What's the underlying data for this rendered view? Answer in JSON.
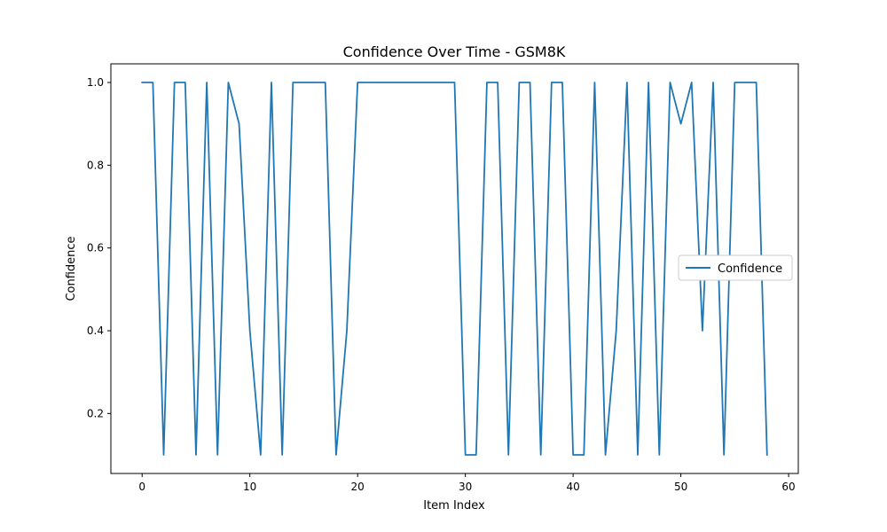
{
  "chart_data": {
    "type": "line",
    "title": "Confidence Over Time - GSM8K",
    "xlabel": "Item Index",
    "ylabel": "Confidence",
    "xlim": [
      -2.9,
      60.9
    ],
    "ylim": [
      0.055,
      1.045
    ],
    "xticks": [
      0,
      10,
      20,
      30,
      40,
      50,
      60
    ],
    "yticks": [
      0.2,
      0.4,
      0.6,
      0.8,
      1.0
    ],
    "xtick_labels": [
      "0",
      "10",
      "20",
      "30",
      "40",
      "50",
      "60"
    ],
    "ytick_labels": [
      "0.2",
      "0.4",
      "0.6",
      "0.8",
      "1.0"
    ],
    "grid": false,
    "legend_position": "center-right",
    "series": [
      {
        "name": "Confidence",
        "color": "#1f77b4",
        "x": [
          0,
          1,
          2,
          3,
          4,
          5,
          6,
          7,
          8,
          9,
          10,
          11,
          12,
          13,
          14,
          15,
          16,
          17,
          18,
          19,
          20,
          21,
          22,
          23,
          24,
          25,
          26,
          27,
          28,
          29,
          30,
          31,
          32,
          33,
          34,
          35,
          36,
          37,
          38,
          39,
          40,
          41,
          42,
          43,
          44,
          45,
          46,
          47,
          48,
          49,
          50,
          51,
          52,
          53,
          54,
          55,
          56,
          57,
          58
        ],
        "y": [
          1.0,
          1.0,
          0.1,
          1.0,
          1.0,
          0.1,
          1.0,
          0.1,
          1.0,
          0.9,
          0.4,
          0.1,
          1.0,
          0.1,
          1.0,
          1.0,
          1.0,
          1.0,
          0.1,
          0.4,
          1.0,
          1.0,
          1.0,
          1.0,
          1.0,
          1.0,
          1.0,
          1.0,
          1.0,
          1.0,
          0.1,
          0.1,
          1.0,
          1.0,
          0.1,
          1.0,
          1.0,
          0.1,
          1.0,
          1.0,
          0.1,
          0.1,
          1.0,
          0.1,
          0.4,
          1.0,
          0.1,
          1.0,
          0.1,
          1.0,
          0.9,
          1.0,
          0.4,
          1.0,
          0.1,
          1.0,
          1.0,
          1.0,
          0.1
        ]
      }
    ]
  }
}
